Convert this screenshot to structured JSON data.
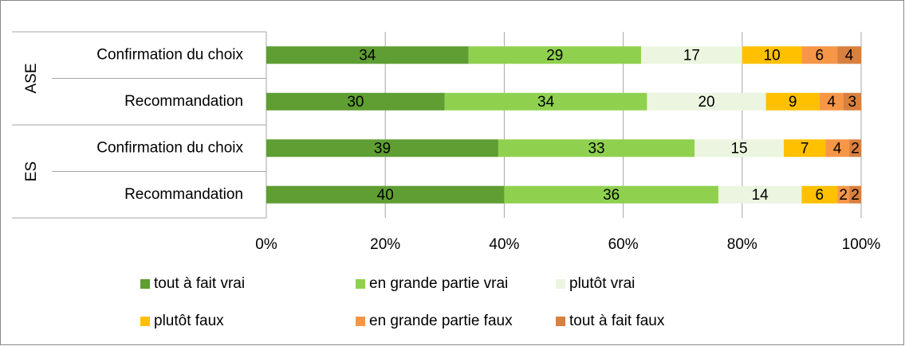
{
  "chart_data": {
    "type": "stacked_barh",
    "category_groups": [
      {
        "name": "ASE",
        "categories": [
          "Confirmation du choix",
          "Recommandation"
        ]
      },
      {
        "name": "ES",
        "categories": [
          "Confirmation du choix",
          "Recommandation"
        ]
      }
    ],
    "series": [
      {
        "name": "tout à fait vrai",
        "color": "#5f9e32",
        "values": [
          34,
          30,
          39,
          40
        ]
      },
      {
        "name": "en grande partie vrai",
        "color": "#8fd14f",
        "values": [
          29,
          34,
          33,
          36
        ]
      },
      {
        "name": "plutôt vrai",
        "color": "#ebf5df",
        "values": [
          17,
          20,
          15,
          14
        ]
      },
      {
        "name": "plutôt faux",
        "color": "#ffc000",
        "values": [
          10,
          9,
          7,
          6
        ]
      },
      {
        "name": "en grande partie faux",
        "color": "#f79646",
        "values": [
          6,
          4,
          4,
          2
        ]
      },
      {
        "name": "tout à fait faux",
        "color": "#d8803f",
        "values": [
          4,
          3,
          2,
          2
        ]
      }
    ],
    "xlim": [
      0,
      100
    ],
    "xticks": [
      {
        "value": 0,
        "label": "0%"
      },
      {
        "value": 20,
        "label": "20%"
      },
      {
        "value": 40,
        "label": "40%"
      },
      {
        "value": 60,
        "label": "60%"
      },
      {
        "value": 80,
        "label": "80%"
      },
      {
        "value": 100,
        "label": "100%"
      }
    ],
    "grid": true,
    "legend": "bottom"
  }
}
